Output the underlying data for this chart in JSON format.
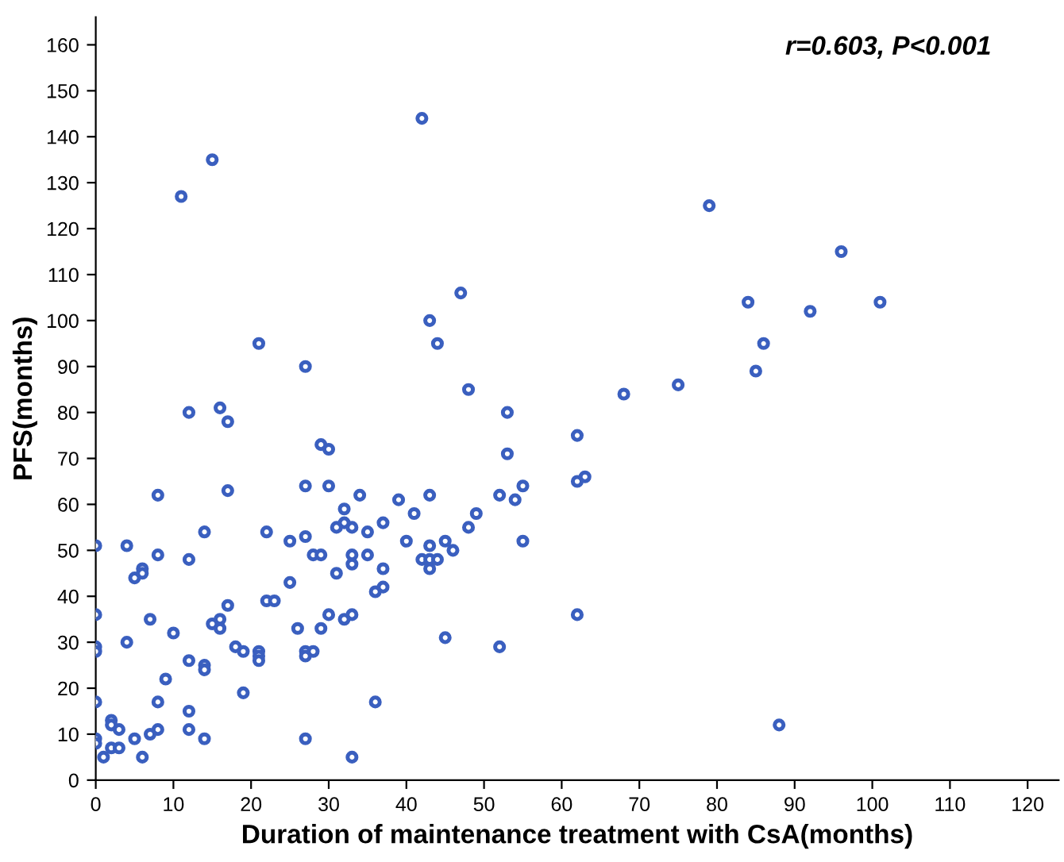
{
  "chart_data": {
    "type": "scatter",
    "xlabel": "Duration of maintenance treatment with CsA(months)",
    "ylabel": "PFS(months)",
    "annotations": [
      "r=0.603, P<0.001"
    ],
    "xlim": [
      0,
      124
    ],
    "ylim": [
      0,
      166
    ],
    "xticks": [
      0,
      10,
      20,
      30,
      40,
      50,
      60,
      70,
      80,
      90,
      100,
      110,
      120
    ],
    "yticks": [
      0,
      10,
      20,
      30,
      40,
      50,
      60,
      70,
      80,
      90,
      100,
      110,
      120,
      130,
      140,
      150,
      160
    ],
    "marker": "circle",
    "grid": false,
    "series": [
      {
        "color": "#3a5fbf",
        "x": [
          0,
          0,
          0,
          0,
          0,
          0,
          0,
          1,
          2,
          2,
          2,
          3,
          3,
          4,
          4,
          5,
          5,
          6,
          6,
          6,
          7,
          7,
          8,
          8,
          8,
          8,
          9,
          10,
          11,
          12,
          12,
          12,
          12,
          12,
          14,
          14,
          14,
          14,
          15,
          15,
          16,
          16,
          16,
          17,
          17,
          17,
          18,
          19,
          19,
          21,
          21,
          21,
          21,
          22,
          22,
          23,
          25,
          25,
          26,
          27,
          27,
          27,
          27,
          27,
          27,
          28,
          28,
          29,
          29,
          29,
          30,
          30,
          30,
          31,
          31,
          32,
          32,
          32,
          33,
          33,
          33,
          33,
          33,
          34,
          35,
          35,
          36,
          36,
          37,
          37,
          37,
          39,
          40,
          41,
          42,
          42,
          43,
          43,
          43,
          43,
          43,
          44,
          44,
          45,
          45,
          46,
          47,
          48,
          48,
          49,
          52,
          52,
          53,
          53,
          54,
          55,
          55,
          62,
          62,
          62,
          63,
          68,
          75,
          79,
          84,
          85,
          86,
          88,
          92,
          96,
          101
        ],
        "values": [
          51,
          36,
          29,
          28,
          17,
          9,
          8,
          5,
          13,
          12,
          7,
          11,
          7,
          51,
          30,
          44,
          9,
          46,
          45,
          5,
          35,
          10,
          62,
          49,
          17,
          11,
          22,
          32,
          127,
          80,
          48,
          26,
          15,
          11,
          54,
          25,
          24,
          9,
          135,
          34,
          81,
          35,
          33,
          78,
          63,
          38,
          29,
          28,
          19,
          95,
          28,
          27,
          26,
          54,
          39,
          39,
          52,
          43,
          33,
          90,
          64,
          53,
          28,
          27,
          9,
          49,
          28,
          73,
          49,
          33,
          72,
          64,
          36,
          55,
          45,
          59,
          56,
          35,
          55,
          49,
          47,
          36,
          5,
          62,
          54,
          49,
          41,
          17,
          56,
          46,
          42,
          61,
          52,
          58,
          144,
          48,
          100,
          62,
          51,
          48,
          46,
          95,
          48,
          52,
          31,
          50,
          106,
          85,
          55,
          58,
          62,
          29,
          80,
          71,
          61,
          64,
          52,
          75,
          65,
          36,
          66,
          84,
          86,
          125,
          104,
          89,
          95,
          12,
          102,
          115,
          104
        ]
      }
    ]
  }
}
